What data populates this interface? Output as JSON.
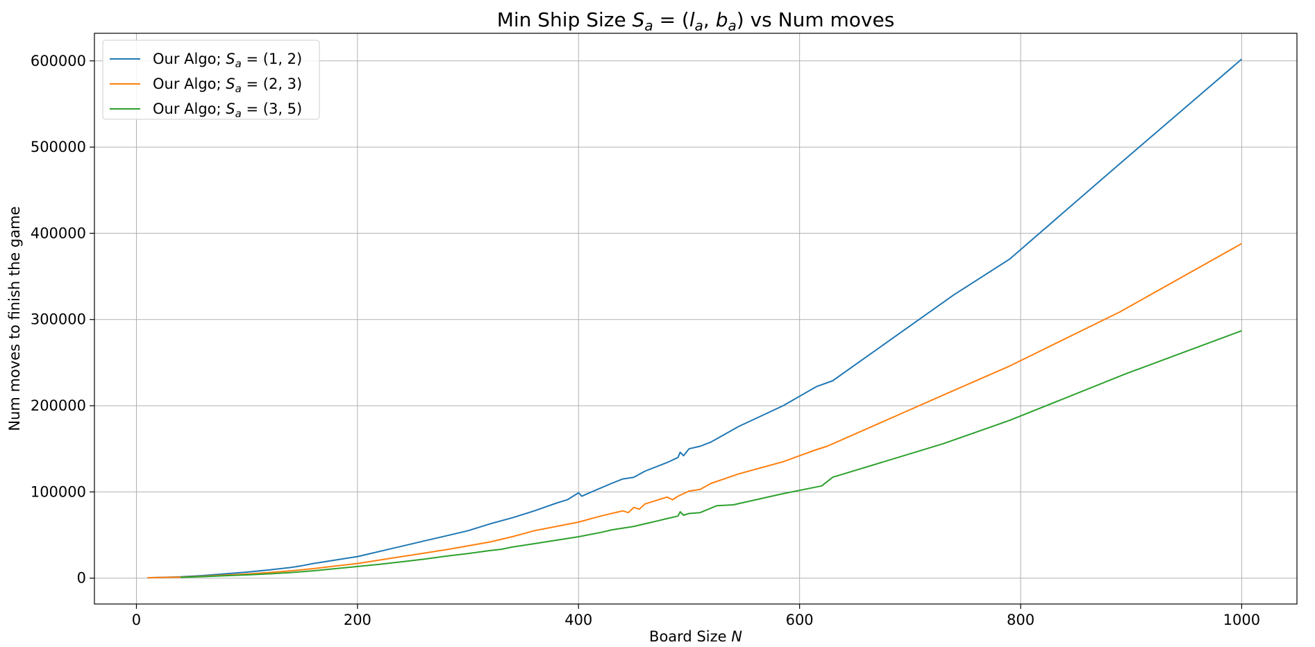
{
  "chart_data": {
    "type": "line",
    "title_pre": "Min Ship Size ",
    "title_math": "S",
    "title_sub": "a",
    "title_mid": " = (",
    "title_l": "l",
    "title_l_sub": "a",
    "title_comma": ", ",
    "title_b": "b",
    "title_b_sub": "a",
    "title_post": ") vs Num moves",
    "xlabel": "Board Size ",
    "xlabel_math": "N",
    "ylabel": "Num moves to finish the game",
    "xlim": [
      -38,
      1050
    ],
    "ylim": [
      -30000,
      632000
    ],
    "xticks": [
      0,
      200,
      400,
      600,
      800,
      1000
    ],
    "yticks": [
      0,
      100000,
      200000,
      300000,
      400000,
      500000,
      600000
    ],
    "grid": true,
    "legend_position": "top-left",
    "series": [
      {
        "legend_pre": "Our Algo; ",
        "legend_math": "S",
        "legend_sub": "a",
        "legend_post": " = (1, 2)",
        "color": "#1f77b4",
        "x": [
          10,
          40,
          60,
          80,
          100,
          120,
          140,
          150,
          160,
          180,
          200,
          210,
          220,
          240,
          260,
          280,
          300,
          320,
          340,
          360,
          380,
          390,
          400,
          403,
          410,
          430,
          440,
          450,
          460,
          480,
          490,
          492,
          495,
          500,
          510,
          520,
          545,
          585,
          615,
          630,
          740,
          790,
          890,
          1000
        ],
        "y": [
          500,
          1500,
          3000,
          5000,
          7000,
          9500,
          12500,
          14500,
          17000,
          21000,
          25000,
          28000,
          31000,
          37000,
          43000,
          49000,
          55000,
          63000,
          70000,
          78000,
          87000,
          91000,
          99000,
          95000,
          99000,
          110000,
          115000,
          117000,
          124000,
          134000,
          140000,
          146000,
          142000,
          150000,
          153000,
          158000,
          176000,
          200000,
          222000,
          229000,
          329000,
          370000,
          481000,
          602000
        ]
      },
      {
        "legend_pre": "Our Algo; ",
        "legend_math": "S",
        "legend_sub": "a",
        "legend_post": " = (2, 3)",
        "color": "#ff7f0e",
        "x": [
          10,
          40,
          60,
          80,
          100,
          120,
          140,
          160,
          180,
          200,
          220,
          240,
          260,
          280,
          300,
          320,
          340,
          360,
          380,
          400,
          420,
          440,
          445,
          450,
          455,
          460,
          470,
          480,
          485,
          490,
          495,
          500,
          510,
          520,
          545,
          585,
          615,
          625,
          740,
          790,
          890,
          1000
        ],
        "y": [
          500,
          1200,
          2200,
          3500,
          4800,
          6500,
          8500,
          11000,
          14000,
          17000,
          21000,
          25000,
          29000,
          33000,
          37500,
          42000,
          48000,
          55000,
          60000,
          65000,
          72000,
          78000,
          76000,
          82000,
          80000,
          86000,
          90000,
          94000,
          91000,
          95000,
          98000,
          101000,
          103000,
          110000,
          121000,
          135000,
          149000,
          153000,
          218000,
          246000,
          309000,
          388000
        ]
      },
      {
        "legend_pre": "Our Algo; ",
        "legend_math": "S",
        "legend_sub": "a",
        "legend_post": " = (3, 5)",
        "color": "#2ca02c",
        "x": [
          40,
          60,
          80,
          100,
          120,
          140,
          160,
          180,
          200,
          220,
          240,
          260,
          280,
          300,
          320,
          330,
          340,
          360,
          380,
          400,
          420,
          430,
          440,
          450,
          460,
          470,
          480,
          490,
          492,
          495,
          500,
          510,
          525,
          540,
          585,
          620,
          630,
          730,
          790,
          895,
          1000
        ],
        "y": [
          1000,
          1800,
          2800,
          3800,
          5000,
          6500,
          8500,
          11000,
          13500,
          16000,
          19000,
          22000,
          25500,
          28500,
          32000,
          33500,
          36000,
          40000,
          44000,
          48000,
          53000,
          56000,
          58000,
          60000,
          63000,
          66000,
          69000,
          72000,
          77000,
          73000,
          75000,
          76000,
          84000,
          85000,
          98000,
          107000,
          117000,
          156000,
          183000,
          237000,
          287000
        ]
      }
    ]
  }
}
